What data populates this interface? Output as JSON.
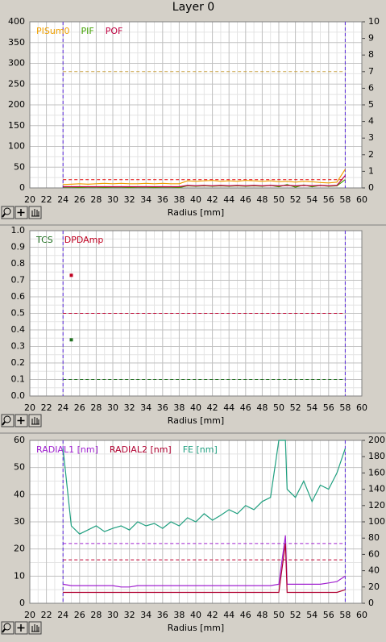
{
  "page_title": "Layer 0",
  "chart_data": [
    {
      "type": "line",
      "xlabel": "Radius [mm]",
      "legend": "top-left",
      "grid": true,
      "xlim": [
        20,
        60
      ],
      "xticks": [
        20,
        22,
        24,
        26,
        28,
        30,
        32,
        34,
        36,
        38,
        40,
        42,
        44,
        46,
        48,
        50,
        52,
        54,
        56,
        58,
        60
      ],
      "ylim": [
        0,
        400
      ],
      "yticks": [
        0,
        50,
        100,
        150,
        200,
        250,
        300,
        350,
        400
      ],
      "y2lim": [
        0,
        10
      ],
      "y2ticks": [
        0,
        1,
        2,
        3,
        4,
        5,
        6,
        7,
        8,
        9,
        10
      ],
      "vlines": [
        24,
        58
      ],
      "vline_color": "#5a28e0",
      "hlines": [
        {
          "value": 280,
          "color": "#c8a040"
        },
        {
          "value": 20,
          "color": "#e00000"
        }
      ],
      "x": [
        24,
        25,
        26,
        27,
        28,
        29,
        30,
        31,
        32,
        33,
        34,
        35,
        36,
        37,
        38,
        39,
        40,
        41,
        42,
        43,
        44,
        45,
        46,
        47,
        48,
        49,
        50,
        51,
        52,
        53,
        54,
        55,
        56,
        57,
        58
      ],
      "series": [
        {
          "name": "PISum0",
          "color": "#f0a000",
          "values": [
            8,
            9,
            10,
            9,
            10,
            11,
            10,
            11,
            10,
            10,
            11,
            10,
            11,
            10,
            10,
            17,
            16,
            17,
            18,
            16,
            17,
            16,
            18,
            17,
            16,
            17,
            15,
            16,
            14,
            16,
            15,
            13,
            12,
            14,
            45
          ]
        },
        {
          "name": "PIF",
          "color": "#40a000",
          "values": [
            2,
            2,
            1,
            2,
            2,
            1,
            2,
            2,
            1,
            2,
            2,
            1,
            2,
            2,
            1,
            5,
            4,
            5,
            4,
            5,
            4,
            5,
            4,
            5,
            4,
            6,
            3,
            8,
            2,
            7,
            3,
            6,
            4,
            5,
            20
          ]
        },
        {
          "name": "POF",
          "color": "#c00040",
          "values": [
            3,
            3,
            3,
            3,
            3,
            3,
            3,
            3,
            3,
            3,
            3,
            3,
            3,
            3,
            3,
            6,
            5,
            6,
            5,
            6,
            5,
            6,
            5,
            6,
            5,
            6,
            5,
            6,
            5,
            6,
            5,
            6,
            5,
            6,
            30
          ]
        }
      ]
    },
    {
      "type": "scatter",
      "xlabel": "Radius [mm]",
      "legend": "top-left",
      "grid": true,
      "xlim": [
        20,
        60
      ],
      "xticks": [
        20,
        22,
        24,
        26,
        28,
        30,
        32,
        34,
        36,
        38,
        40,
        42,
        44,
        46,
        48,
        50,
        52,
        54,
        56,
        58,
        60
      ],
      "ylim": [
        0,
        1
      ],
      "yticks": [
        {
          "value": 0,
          "label": "0.0"
        },
        0.1,
        0.2,
        0.3,
        0.4,
        0.5,
        0.6,
        0.7,
        0.8,
        0.9,
        {
          "value": 1,
          "label": "1.0"
        }
      ],
      "vlines": [
        24,
        58
      ],
      "vline_color": "#5a28e0",
      "hlines": [
        {
          "value": 0.5,
          "color": "#c00030"
        },
        {
          "value": 0.1,
          "color": "#207020"
        }
      ],
      "x": [
        25
      ],
      "series": [
        {
          "name": "TCS",
          "color": "#207020",
          "values": [
            0.34
          ]
        },
        {
          "name": "DPDAmp",
          "color": "#c00020",
          "values": [
            0.73
          ]
        }
      ]
    },
    {
      "type": "line",
      "xlabel": "Radius [mm]",
      "legend": "top-left",
      "grid": true,
      "xlim": [
        20,
        60
      ],
      "xticks": [
        20,
        22,
        24,
        26,
        28,
        30,
        32,
        34,
        36,
        38,
        40,
        42,
        44,
        46,
        48,
        50,
        52,
        54,
        56,
        58,
        60
      ],
      "ylim": [
        0,
        60
      ],
      "yticks": [
        0,
        10,
        20,
        30,
        40,
        50,
        60
      ],
      "y2lim": [
        0,
        200
      ],
      "y2ticks": [
        0,
        20,
        40,
        60,
        80,
        100,
        120,
        140,
        160,
        180,
        200
      ],
      "vlines": [
        24,
        58
      ],
      "vline_color": "#5a28e0",
      "hlines": [
        {
          "value": 22,
          "color": "#a020d0"
        },
        {
          "value": 16,
          "color": "#c00030"
        }
      ],
      "x": [
        24,
        25,
        26,
        27,
        28,
        29,
        30,
        31,
        32,
        33,
        34,
        35,
        36,
        37,
        38,
        39,
        40,
        41,
        42,
        43,
        44,
        45,
        46,
        47,
        48,
        49,
        50,
        50.8,
        51,
        52,
        53,
        54,
        55,
        56,
        57,
        58
      ],
      "series": [
        {
          "name": "RADIAL1 [nm]",
          "color": "#a020d0",
          "values": [
            7,
            6.5,
            6.5,
            6.5,
            6.5,
            6.5,
            6.5,
            6,
            6,
            6.5,
            6.5,
            6.5,
            6.5,
            6.5,
            6.5,
            6.5,
            6.5,
            6.5,
            6.5,
            6.5,
            6.5,
            6.5,
            6.5,
            6.5,
            6.5,
            6.5,
            7,
            25,
            7,
            7,
            7,
            7,
            7,
            7.5,
            8,
            10
          ]
        },
        {
          "name": "RADIAL2 [nm]",
          "color": "#b00030",
          "values": [
            4,
            4,
            4,
            4,
            4,
            4,
            4,
            4,
            4,
            4,
            4,
            4,
            4,
            4,
            4,
            4,
            4,
            4,
            4,
            4,
            4,
            4,
            4,
            4,
            4,
            4,
            4,
            22,
            4,
            4,
            4,
            4,
            4,
            4,
            4,
            5
          ]
        },
        {
          "name": "FE [nm]",
          "color": "#20a080",
          "axis": "y2",
          "values": [
            190,
            95,
            85,
            90,
            95,
            88,
            92,
            95,
            90,
            100,
            95,
            98,
            92,
            100,
            95,
            105,
            100,
            110,
            102,
            108,
            115,
            110,
            120,
            115,
            125,
            130,
            200,
            200,
            140,
            130,
            150,
            125,
            145,
            140,
            160,
            190
          ]
        }
      ]
    }
  ]
}
